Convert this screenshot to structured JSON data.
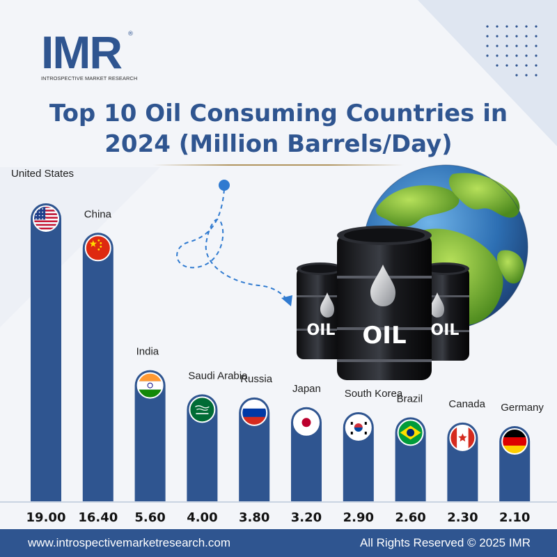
{
  "brand": {
    "logo_text": "IMR",
    "registered_mark": "®",
    "tagline": "INTROSPECTIVE MARKET RESEARCH"
  },
  "header": {
    "title_line1": "Top 10 Oil Consuming Countries in",
    "title_line2": "2024 (Million Barrels/Day)"
  },
  "illustration": {
    "barrel_label": "OIL"
  },
  "colors": {
    "accent": "#2f5590",
    "bar": "#2f5590",
    "gold": "#b0945e"
  },
  "footer": {
    "website": "www.introspectivemarketresearch.com",
    "rights": "All Rights Reserved © 2025 IMR"
  },
  "chart_data": {
    "type": "bar",
    "title": "Top 10 Oil Consuming Countries in 2024 (Million Barrels/Day)",
    "categories": [
      "United States",
      "China",
      "India",
      "Saudi Arabia",
      "Russia",
      "Japan",
      "South Korea",
      "Brazil",
      "Canada",
      "Germany"
    ],
    "values": [
      19.0,
      16.4,
      5.6,
      4.0,
      3.8,
      3.2,
      2.9,
      2.6,
      2.3,
      2.1
    ],
    "value_labels": [
      "19.00",
      "16.40",
      "5.60",
      "4.00",
      "3.80",
      "3.20",
      "2.90",
      "2.60",
      "2.30",
      "2.10"
    ],
    "flags": [
      "us",
      "cn",
      "in",
      "sa",
      "ru",
      "jp",
      "kr",
      "br",
      "ca",
      "de"
    ],
    "xlabel": "",
    "ylabel": "",
    "grid": false,
    "legend": "none"
  }
}
